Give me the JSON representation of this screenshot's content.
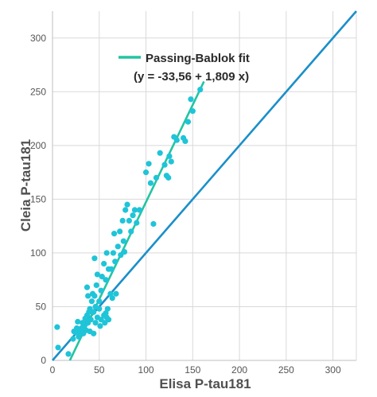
{
  "chart_data": {
    "type": "scatter",
    "title": "",
    "xlabel": "Elisa P-tau181",
    "ylabel": "Cleia P-tau181",
    "xlim": [
      0,
      325
    ],
    "ylim": [
      0,
      325
    ],
    "xticks": [
      "0",
      "50",
      "100",
      "150",
      "200",
      "250",
      "300"
    ],
    "yticks": [
      "0",
      "50",
      "100",
      "150",
      "200",
      "250",
      "300"
    ],
    "grid": true,
    "legend": {
      "position": "top-center",
      "label": "Passing-Bablok fit",
      "equation": "(y = -33,56 + 1,809 x)"
    },
    "colors": {
      "points": "#1fc4d8",
      "fit_line": "#23c4a2",
      "identity_line": "#1a8fc9",
      "grid": "#d9d9d9",
      "axis": "#bfbfbf"
    },
    "fit": {
      "intercept": -33.56,
      "slope": 1.809,
      "x_range": [
        18.6,
        162
      ]
    },
    "identity": {
      "x_range": [
        0,
        325
      ]
    },
    "points": [
      [
        5,
        31
      ],
      [
        6,
        12
      ],
      [
        17,
        6
      ],
      [
        22,
        20
      ],
      [
        23,
        27
      ],
      [
        25,
        26
      ],
      [
        26,
        30
      ],
      [
        27,
        36
      ],
      [
        28,
        22
      ],
      [
        29,
        25
      ],
      [
        30,
        28
      ],
      [
        31,
        30
      ],
      [
        32,
        35
      ],
      [
        33,
        25
      ],
      [
        34,
        32
      ],
      [
        35,
        39
      ],
      [
        36,
        28
      ],
      [
        37,
        42
      ],
      [
        37,
        68
      ],
      [
        38,
        35
      ],
      [
        38,
        60
      ],
      [
        39,
        45
      ],
      [
        40,
        27
      ],
      [
        40,
        48
      ],
      [
        41,
        38
      ],
      [
        42,
        55
      ],
      [
        43,
        62
      ],
      [
        44,
        25
      ],
      [
        44,
        45
      ],
      [
        45,
        60
      ],
      [
        45,
        95
      ],
      [
        46,
        35
      ],
      [
        46,
        50
      ],
      [
        47,
        70
      ],
      [
        48,
        40
      ],
      [
        48,
        80
      ],
      [
        50,
        48
      ],
      [
        50,
        55
      ],
      [
        51,
        32
      ],
      [
        52,
        38
      ],
      [
        52,
        65
      ],
      [
        53,
        78
      ],
      [
        55,
        42
      ],
      [
        55,
        90
      ],
      [
        56,
        35
      ],
      [
        57,
        44
      ],
      [
        57,
        75
      ],
      [
        58,
        40
      ],
      [
        58,
        100
      ],
      [
        59,
        48
      ],
      [
        60,
        38
      ],
      [
        60,
        85
      ],
      [
        62,
        62
      ],
      [
        63,
        85
      ],
      [
        64,
        58
      ],
      [
        65,
        100
      ],
      [
        66,
        118
      ],
      [
        67,
        92
      ],
      [
        68,
        62
      ],
      [
        70,
        106
      ],
      [
        72,
        120
      ],
      [
        73,
        98
      ],
      [
        75,
        130
      ],
      [
        76,
        111
      ],
      [
        77,
        101
      ],
      [
        78,
        140
      ],
      [
        80,
        145
      ],
      [
        82,
        130
      ],
      [
        84,
        120
      ],
      [
        86,
        135
      ],
      [
        88,
        140
      ],
      [
        90,
        128
      ],
      [
        93,
        140
      ],
      [
        100,
        175
      ],
      [
        103,
        183
      ],
      [
        105,
        165
      ],
      [
        108,
        127
      ],
      [
        111,
        170
      ],
      [
        115,
        193
      ],
      [
        120,
        182
      ],
      [
        122,
        172
      ],
      [
        124,
        170
      ],
      [
        125,
        190
      ],
      [
        127,
        185
      ],
      [
        130,
        208
      ],
      [
        133,
        205
      ],
      [
        140,
        207
      ],
      [
        142,
        204
      ],
      [
        145,
        222
      ],
      [
        148,
        243
      ],
      [
        150,
        232
      ],
      [
        158,
        252
      ]
    ]
  }
}
